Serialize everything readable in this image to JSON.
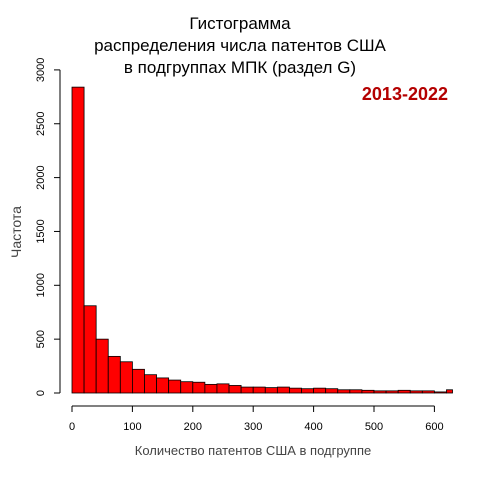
{
  "chart_data": {
    "type": "bar",
    "title_lines": [
      "Гистограмма",
      "распределения числа патентов США",
      "в подгруппах МПК (раздел G)"
    ],
    "annotation": "2013-2022",
    "xlabel": "Количество патентов США в подгруппе",
    "ylabel": "Частота",
    "xlim": [
      0,
      630
    ],
    "ylim": [
      0,
      3000
    ],
    "xticks": [
      "0",
      "100",
      "200",
      "300",
      "400",
      "500",
      "600"
    ],
    "yticks": [
      "0",
      "500",
      "1000",
      "1500",
      "2000",
      "2500",
      "3000"
    ],
    "bin_width": 20,
    "bin_starts": [
      0,
      20,
      40,
      60,
      80,
      100,
      120,
      140,
      160,
      180,
      200,
      220,
      240,
      260,
      280,
      300,
      320,
      340,
      360,
      380,
      400,
      420,
      440,
      460,
      480,
      500,
      520,
      540,
      560,
      580,
      600,
      620
    ],
    "values": [
      2840,
      810,
      500,
      340,
      290,
      220,
      170,
      140,
      120,
      105,
      100,
      80,
      85,
      70,
      55,
      55,
      50,
      55,
      45,
      40,
      45,
      40,
      30,
      30,
      25,
      20,
      20,
      25,
      20,
      20,
      10,
      30
    ],
    "bar_color": "#ff0000",
    "annotation_color": "#b40000",
    "grid": false
  }
}
